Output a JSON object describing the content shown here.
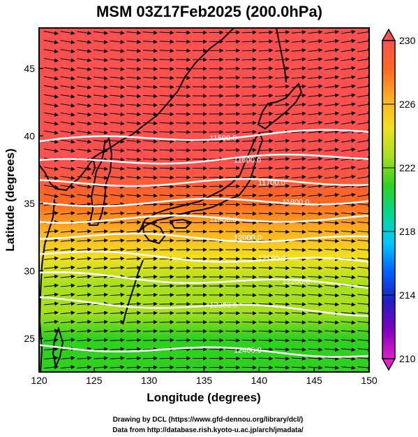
{
  "chart_data": {
    "type": "heatmap",
    "title": "MSM 03Z17Feb2025 (200.0hPa)",
    "xlabel": "Longitude (degrees)",
    "ylabel": "Latitude  (degrees)",
    "xlim": [
      120,
      150
    ],
    "ylim": [
      22.5,
      48
    ],
    "x_ticks": [
      120,
      125,
      130,
      135,
      140,
      145,
      150
    ],
    "y_ticks": [
      25,
      30,
      35,
      40,
      45
    ],
    "colorbar": {
      "min": 210,
      "max": 230,
      "ticks": [
        230,
        226,
        222,
        218,
        214,
        210
      ],
      "colors": [
        "#e020c8",
        "#8000c0",
        "#2020c0",
        "#0060ff",
        "#00c8ff",
        "#00d890",
        "#30d020",
        "#a8e020",
        "#f0e020",
        "#ffb020",
        "#ff6a20",
        "#ff5050"
      ]
    },
    "contours": [
      {
        "label": "11500.0",
        "lat_west": 39.6,
        "lat_east": 40.3
      },
      {
        "label": "11600.0",
        "lat_west": 38.0,
        "lat_east": 38.5
      },
      {
        "label": "11700.0",
        "lat_west": 36.5,
        "lat_east": 36.6
      },
      {
        "label": "11800.0",
        "lat_west": 35.0,
        "lat_east": 35.2
      },
      {
        "label": "11900.0",
        "lat_west": 33.8,
        "lat_east": 33.9
      },
      {
        "label": "12000.0",
        "lat_west": 32.6,
        "lat_east": 32.3
      },
      {
        "label": "12100.0",
        "lat_west": 31.3,
        "lat_east": 30.6
      },
      {
        "label": "12200.0",
        "lat_west": 29.7,
        "lat_east": 28.9
      },
      {
        "label": "12300.0",
        "lat_west": 27.8,
        "lat_east": 26.9
      },
      {
        "label": "12400.0",
        "lat_west": 24.4,
        "lat_east": 23.8
      }
    ],
    "temperature_field": [
      {
        "lat": 22.5,
        "value": 221
      },
      {
        "lat": 25,
        "value": 221.5
      },
      {
        "lat": 27,
        "value": 222
      },
      {
        "lat": 29,
        "value": 223.5
      },
      {
        "lat": 31,
        "value": 225
      },
      {
        "lat": 33,
        "value": 227
      },
      {
        "lat": 35,
        "value": 228.5
      },
      {
        "lat": 38,
        "value": 229.5
      },
      {
        "lat": 42,
        "value": 230
      },
      {
        "lat": 48,
        "value": 230
      }
    ]
  },
  "credits": {
    "line1": "Drawing by DCL (https://www.gfd-dennou.org/library/dcl/)",
    "line2": "Data from http://database.rish.kyoto-u.ac.jp/arch/jmadata/"
  }
}
